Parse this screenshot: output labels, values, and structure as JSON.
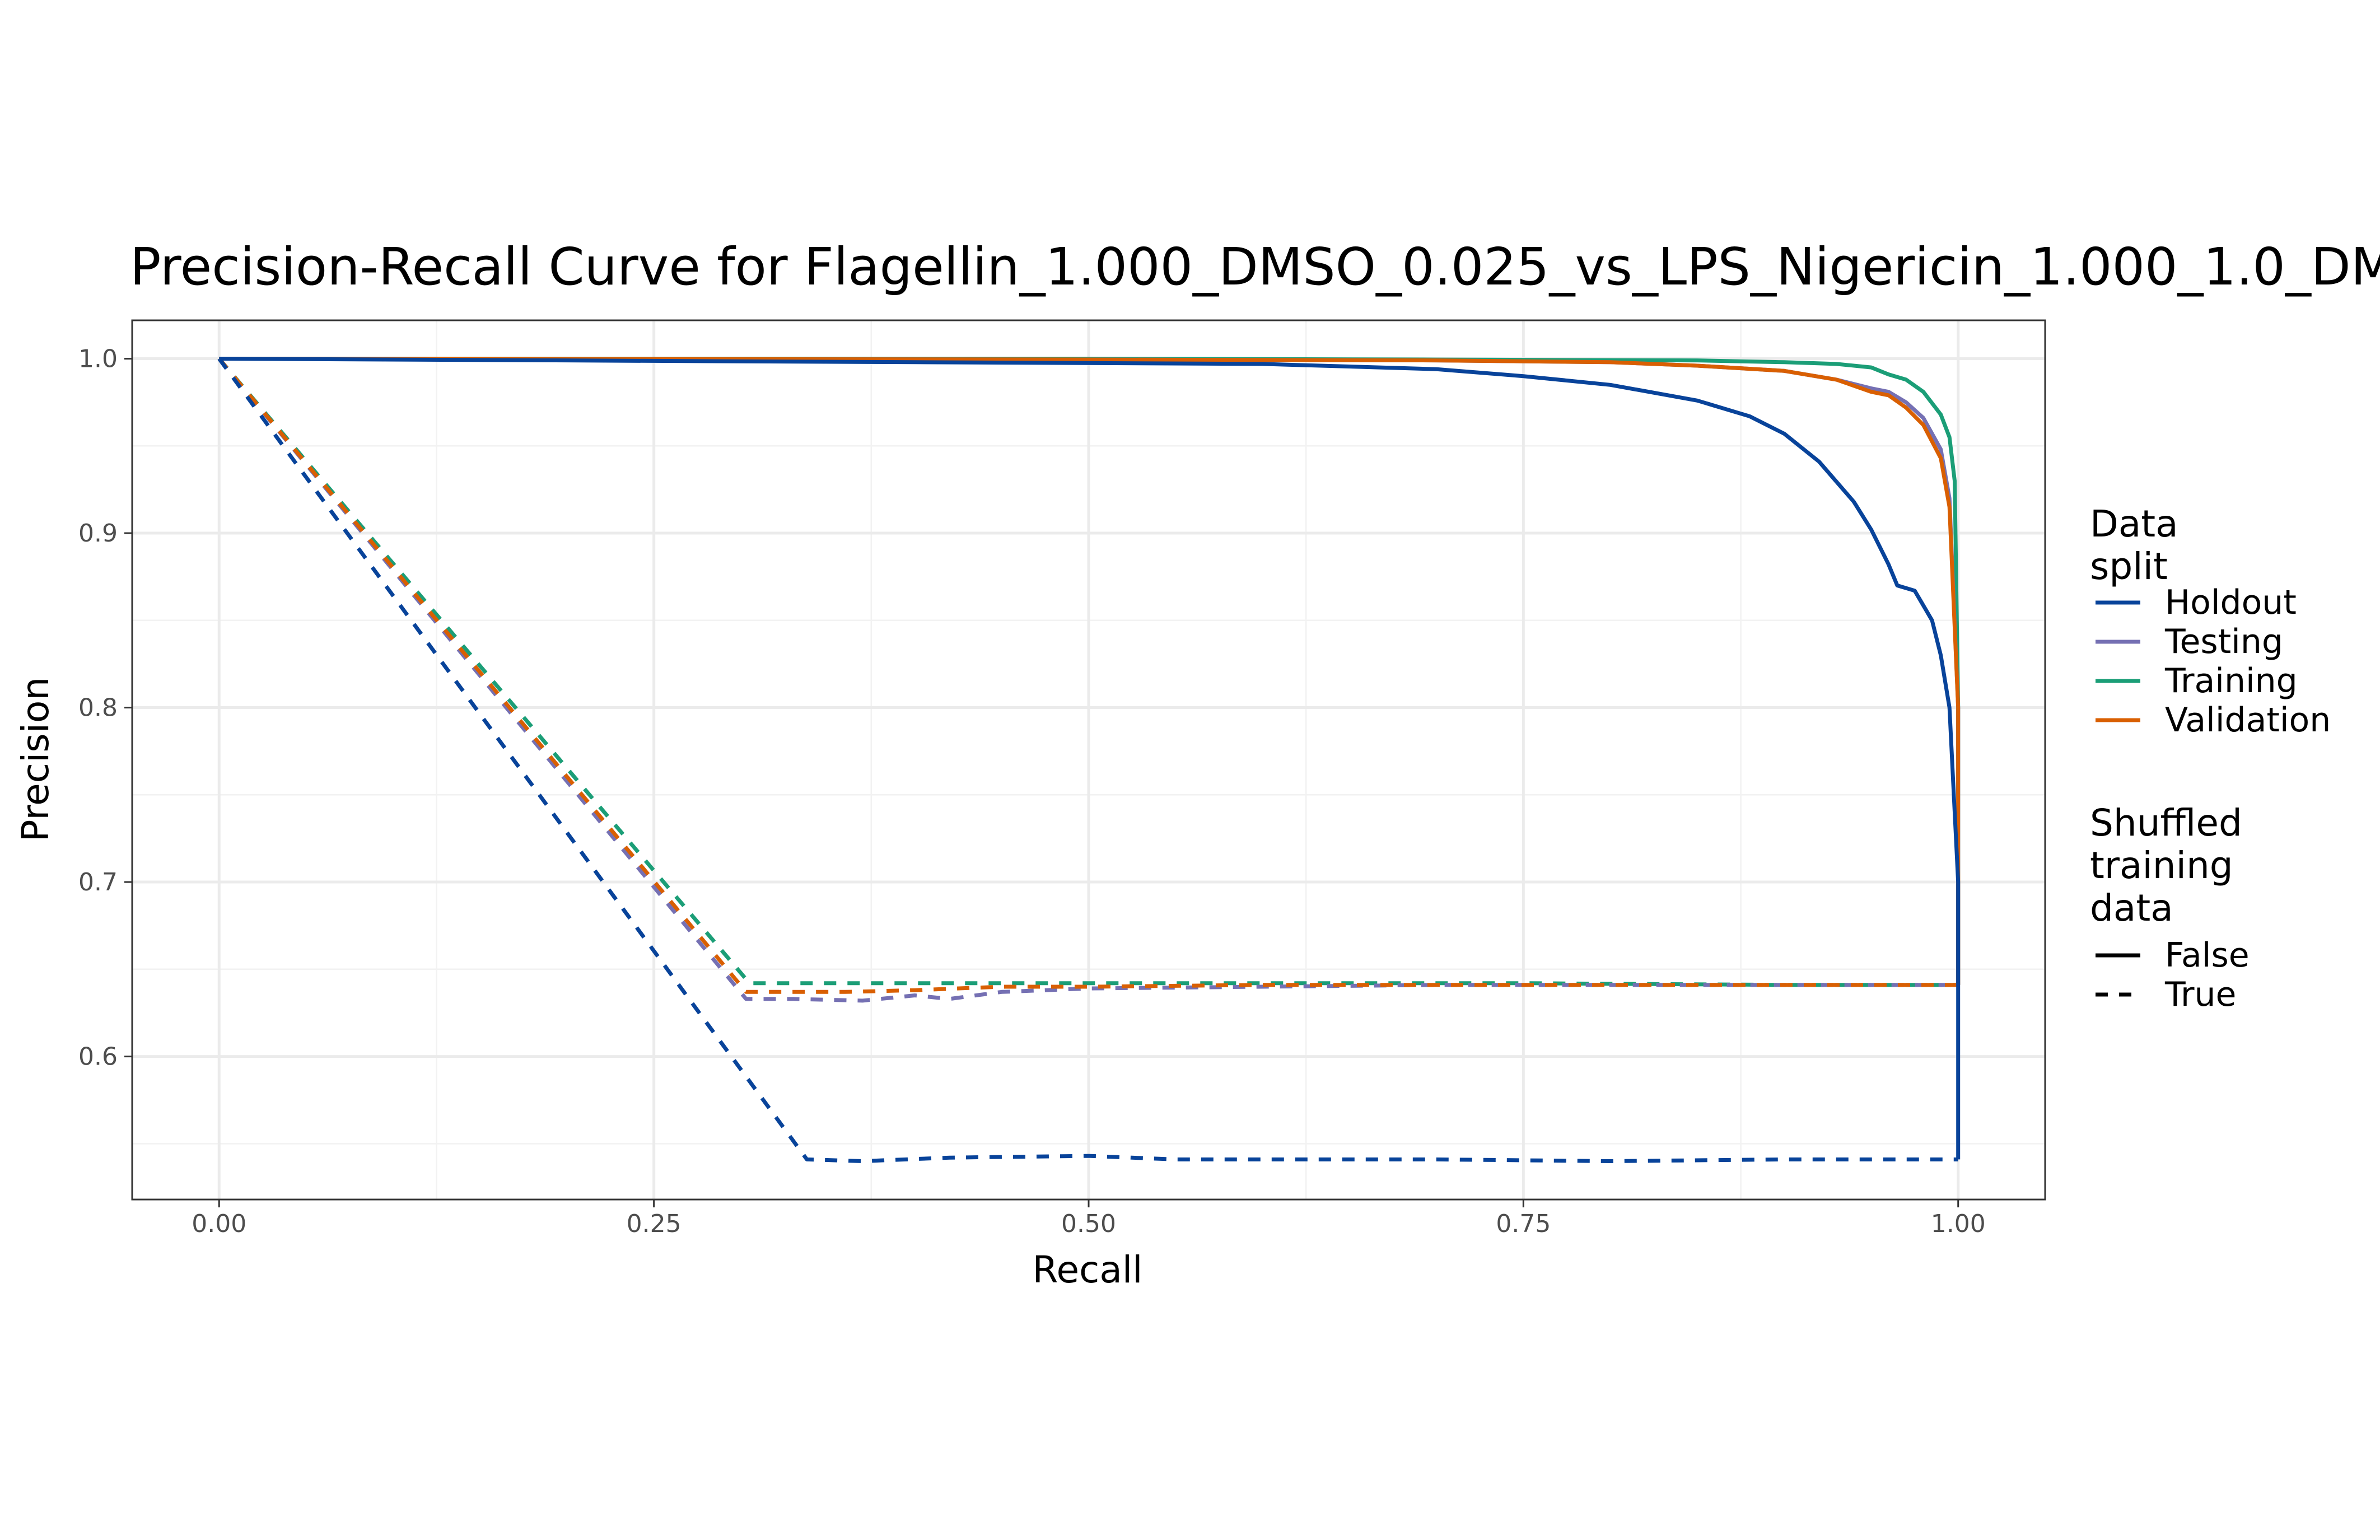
{
  "chart_data": {
    "type": "line",
    "title": "Precision-Recall Curve for Flagellin_1.000_DMSO_0.025_vs_LPS_Nigericin_1.000_1.0_DM",
    "xlabel": "Recall",
    "ylabel": "Precision",
    "xlim": [
      -0.05,
      1.05
    ],
    "ylim": [
      0.518,
      1.022
    ],
    "x_ticks": [
      "0.00",
      "0.25",
      "0.50",
      "0.75",
      "1.00"
    ],
    "y_ticks": [
      "0.6",
      "0.7",
      "0.8",
      "0.9",
      "1.0"
    ],
    "grid": true,
    "legend_position": "right",
    "legend": {
      "color_title_lines": [
        "Data",
        "split"
      ],
      "color_entries": [
        {
          "label": "Holdout",
          "color": "#08439a"
        },
        {
          "label": "Testing",
          "color": "#7570b3"
        },
        {
          "label": "Training",
          "color": "#1b9e77"
        },
        {
          "label": "Validation",
          "color": "#d95f02"
        }
      ],
      "linetype_title_lines": [
        "Shuffled",
        "training",
        "data"
      ],
      "linetype_entries": [
        {
          "label": "False",
          "dash": "solid"
        },
        {
          "label": "True",
          "dash": "dashed"
        }
      ]
    },
    "series": [
      {
        "split": "Training",
        "shuffled": "True",
        "color": "#1b9e77",
        "dash": "dashed",
        "x": [
          0,
          0.305,
          0.35,
          0.5,
          0.6,
          0.75,
          0.9,
          1.0
        ],
        "y": [
          1.0,
          0.642,
          0.642,
          0.642,
          0.642,
          0.642,
          0.641,
          0.641
        ]
      },
      {
        "split": "Testing",
        "shuffled": "True",
        "color": "#7570b3",
        "dash": "dashed",
        "x": [
          0,
          0.303,
          0.33,
          0.37,
          0.4,
          0.42,
          0.45,
          0.5,
          0.6,
          0.7,
          0.8,
          0.9,
          1.0
        ],
        "y": [
          1.0,
          0.633,
          0.633,
          0.632,
          0.635,
          0.633,
          0.637,
          0.639,
          0.64,
          0.641,
          0.641,
          0.641,
          0.641
        ]
      },
      {
        "split": "Validation",
        "shuffled": "True",
        "color": "#d95f02",
        "dash": "dashed",
        "x": [
          0,
          0.303,
          0.33,
          0.36,
          0.4,
          0.45,
          0.5,
          0.6,
          0.7,
          0.8,
          0.9,
          1.0
        ],
        "y": [
          1.0,
          0.637,
          0.637,
          0.637,
          0.638,
          0.64,
          0.64,
          0.641,
          0.641,
          0.641,
          0.641,
          0.641
        ]
      },
      {
        "split": "Holdout",
        "shuffled": "True",
        "color": "#08439a",
        "dash": "dashed",
        "x": [
          0,
          0.338,
          0.37,
          0.42,
          0.5,
          0.55,
          0.6,
          0.7,
          0.8,
          0.9,
          1.0
        ],
        "y": [
          1.0,
          0.541,
          0.54,
          0.542,
          0.543,
          0.541,
          0.541,
          0.541,
          0.54,
          0.541,
          0.541
        ]
      },
      {
        "split": "Training",
        "shuffled": "False",
        "color": "#1b9e77",
        "dash": "solid",
        "x": [
          0,
          0.5,
          0.7,
          0.85,
          0.9,
          0.93,
          0.95,
          0.96,
          0.97,
          0.98,
          0.99,
          0.995,
          0.998,
          1.0,
          1.0
        ],
        "y": [
          1.0,
          1.0,
          0.9995,
          0.999,
          0.998,
          0.997,
          0.995,
          0.991,
          0.988,
          0.981,
          0.968,
          0.955,
          0.93,
          0.8,
          0.641
        ]
      },
      {
        "split": "Testing",
        "shuffled": "False",
        "color": "#7570b3",
        "dash": "solid",
        "x": [
          0,
          0.5,
          0.7,
          0.8,
          0.85,
          0.9,
          0.93,
          0.95,
          0.96,
          0.97,
          0.98,
          0.99,
          0.995,
          1.0,
          1.0
        ],
        "y": [
          1.0,
          0.9995,
          0.999,
          0.998,
          0.996,
          0.993,
          0.988,
          0.983,
          0.981,
          0.975,
          0.966,
          0.948,
          0.92,
          0.8,
          0.641
        ]
      },
      {
        "split": "Validation",
        "shuffled": "False",
        "color": "#d95f02",
        "dash": "solid",
        "x": [
          0,
          0.5,
          0.7,
          0.8,
          0.85,
          0.9,
          0.93,
          0.95,
          0.96,
          0.97,
          0.98,
          0.99,
          0.995,
          1.0,
          1.0
        ],
        "y": [
          1.0,
          0.9995,
          0.999,
          0.998,
          0.996,
          0.993,
          0.988,
          0.981,
          0.979,
          0.972,
          0.962,
          0.943,
          0.915,
          0.8,
          0.641
        ]
      },
      {
        "split": "Holdout",
        "shuffled": "False",
        "color": "#08439a",
        "dash": "solid",
        "x": [
          0,
          0.4,
          0.6,
          0.7,
          0.75,
          0.8,
          0.85,
          0.88,
          0.9,
          0.92,
          0.94,
          0.95,
          0.96,
          0.965,
          0.975,
          0.985,
          0.99,
          0.995,
          1.0,
          1.0,
          1.0
        ],
        "y": [
          1.0,
          0.998,
          0.997,
          0.994,
          0.99,
          0.985,
          0.976,
          0.967,
          0.957,
          0.941,
          0.918,
          0.902,
          0.882,
          0.87,
          0.867,
          0.85,
          0.83,
          0.8,
          0.7,
          0.6,
          0.541
        ]
      }
    ]
  }
}
